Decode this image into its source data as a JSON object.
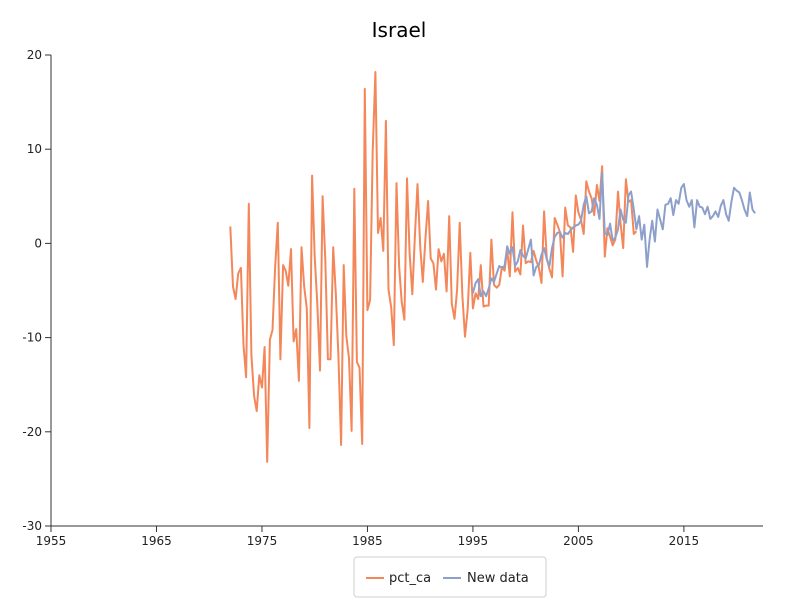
{
  "chart_data": {
    "type": "line",
    "title": "Israel",
    "xlabel": "",
    "ylabel": "",
    "xlim": [
      1955,
      2022.5
    ],
    "ylim": [
      -30,
      20
    ],
    "x_ticks": [
      1955,
      1965,
      1975,
      1985,
      1995,
      2005,
      2015
    ],
    "y_ticks": [
      -30,
      -20,
      -10,
      0,
      10,
      20
    ],
    "grid": false,
    "legend": "bottom-center",
    "series": [
      {
        "name": "pct_ca",
        "color": "#f4875a",
        "points": [
          [
            1972.0,
            1.8
          ],
          [
            1972.25,
            -4.6
          ],
          [
            1972.5,
            -5.9
          ],
          [
            1972.75,
            -3.2
          ],
          [
            1973.0,
            -2.6
          ],
          [
            1973.25,
            -10.8
          ],
          [
            1973.5,
            -14.2
          ],
          [
            1973.75,
            4.2
          ],
          [
            1974.0,
            -11.9
          ],
          [
            1974.25,
            -16.2
          ],
          [
            1974.5,
            -17.8
          ],
          [
            1974.75,
            -14.0
          ],
          [
            1975.0,
            -15.3
          ],
          [
            1975.25,
            -11.0
          ],
          [
            1975.5,
            -23.2
          ],
          [
            1975.75,
            -10.2
          ],
          [
            1976.0,
            -9.2
          ],
          [
            1976.25,
            -2.6
          ],
          [
            1976.5,
            2.2
          ],
          [
            1976.75,
            -12.3
          ],
          [
            1977.0,
            -2.3
          ],
          [
            1977.25,
            -2.9
          ],
          [
            1977.5,
            -4.5
          ],
          [
            1977.75,
            -0.6
          ],
          [
            1978.0,
            -10.4
          ],
          [
            1978.25,
            -9.1
          ],
          [
            1978.5,
            -14.6
          ],
          [
            1978.75,
            -0.4
          ],
          [
            1979.0,
            -4.6
          ],
          [
            1979.25,
            -6.9
          ],
          [
            1979.5,
            -19.6
          ],
          [
            1979.75,
            7.2
          ],
          [
            1980.0,
            -1.4
          ],
          [
            1980.25,
            -6.4
          ],
          [
            1980.5,
            -13.5
          ],
          [
            1980.75,
            5.0
          ],
          [
            1981.0,
            -1.7
          ],
          [
            1981.25,
            -12.3
          ],
          [
            1981.5,
            -12.3
          ],
          [
            1981.75,
            -0.4
          ],
          [
            1982.0,
            -5.3
          ],
          [
            1982.25,
            -11.9
          ],
          [
            1982.5,
            -21.4
          ],
          [
            1982.75,
            -2.3
          ],
          [
            1983.0,
            -9.8
          ],
          [
            1983.25,
            -12.2
          ],
          [
            1983.5,
            -19.9
          ],
          [
            1983.75,
            5.8
          ],
          [
            1984.0,
            -12.6
          ],
          [
            1984.25,
            -13.2
          ],
          [
            1984.5,
            -21.3
          ],
          [
            1984.75,
            16.4
          ],
          [
            1985.0,
            -7.1
          ],
          [
            1985.25,
            -6.0
          ],
          [
            1985.5,
            9.8
          ],
          [
            1985.75,
            18.2
          ],
          [
            1986.0,
            1.1
          ],
          [
            1986.25,
            2.7
          ],
          [
            1986.5,
            -0.8
          ],
          [
            1986.75,
            13.0
          ],
          [
            1987.0,
            -4.9
          ],
          [
            1987.25,
            -6.8
          ],
          [
            1987.5,
            -10.8
          ],
          [
            1987.75,
            6.4
          ],
          [
            1988.0,
            -2.4
          ],
          [
            1988.25,
            -6.2
          ],
          [
            1988.5,
            -8.1
          ],
          [
            1988.75,
            6.9
          ],
          [
            1989.0,
            -1.0
          ],
          [
            1989.25,
            -5.4
          ],
          [
            1989.5,
            0.8
          ],
          [
            1989.75,
            6.3
          ],
          [
            1990.0,
            -0.3
          ],
          [
            1990.25,
            -4.1
          ],
          [
            1990.5,
            0.6
          ],
          [
            1990.75,
            4.5
          ],
          [
            1991.0,
            -1.6
          ],
          [
            1991.25,
            -2.1
          ],
          [
            1991.5,
            -4.9
          ],
          [
            1991.75,
            -0.6
          ],
          [
            1992.0,
            -1.9
          ],
          [
            1992.25,
            -1.1
          ],
          [
            1992.5,
            -5.1
          ],
          [
            1992.75,
            2.9
          ],
          [
            1993.0,
            -6.4
          ],
          [
            1993.25,
            -8.0
          ],
          [
            1993.5,
            -4.9
          ],
          [
            1993.75,
            2.2
          ],
          [
            1994.0,
            -5.6
          ],
          [
            1994.25,
            -9.9
          ],
          [
            1994.5,
            -7.0
          ],
          [
            1994.75,
            -1.0
          ],
          [
            1995.0,
            -6.9
          ],
          [
            1995.25,
            -5.3
          ],
          [
            1995.5,
            -5.9
          ],
          [
            1995.75,
            -2.3
          ],
          [
            1996.0,
            -6.7
          ],
          [
            1996.25,
            -6.6
          ],
          [
            1996.5,
            -6.6
          ],
          [
            1996.75,
            0.4
          ],
          [
            1997.0,
            -4.4
          ],
          [
            1997.25,
            -4.7
          ],
          [
            1997.5,
            -4.4
          ],
          [
            1997.75,
            -2.5
          ],
          [
            1998.0,
            -2.9
          ],
          [
            1998.25,
            -0.6
          ],
          [
            1998.5,
            -3.5
          ],
          [
            1998.75,
            3.3
          ],
          [
            1999.0,
            -3.0
          ],
          [
            1999.25,
            -2.6
          ],
          [
            1999.5,
            -3.3
          ],
          [
            1999.75,
            1.9
          ],
          [
            2000.0,
            -2.1
          ],
          [
            2000.25,
            -1.9
          ],
          [
            2000.5,
            -2.0
          ],
          [
            2000.75,
            -0.8
          ],
          [
            2001.0,
            -1.8
          ],
          [
            2001.25,
            -2.6
          ],
          [
            2001.5,
            -4.2
          ],
          [
            2001.75,
            3.4
          ],
          [
            2002.0,
            -1.6
          ],
          [
            2002.25,
            -2.7
          ],
          [
            2002.5,
            -3.6
          ],
          [
            2002.75,
            2.7
          ],
          [
            2003.0,
            2.0
          ],
          [
            2003.25,
            1.2
          ],
          [
            2003.5,
            -3.5
          ],
          [
            2003.75,
            3.8
          ],
          [
            2004.0,
            1.9
          ],
          [
            2004.25,
            1.7
          ],
          [
            2004.5,
            -0.9
          ],
          [
            2004.75,
            5.1
          ],
          [
            2005.0,
            3.3
          ],
          [
            2005.25,
            2.5
          ],
          [
            2005.5,
            1.0
          ],
          [
            2005.75,
            6.6
          ],
          [
            2006.0,
            5.5
          ],
          [
            2006.25,
            4.8
          ],
          [
            2006.5,
            3.0
          ],
          [
            2006.75,
            6.2
          ],
          [
            2007.0,
            4.5
          ],
          [
            2007.25,
            8.2
          ],
          [
            2007.5,
            -1.4
          ],
          [
            2007.75,
            1.6
          ],
          [
            2008.0,
            0.7
          ],
          [
            2008.25,
            -0.2
          ],
          [
            2008.5,
            0.4
          ],
          [
            2008.75,
            5.5
          ],
          [
            2009.0,
            2.1
          ],
          [
            2009.25,
            -0.5
          ],
          [
            2009.5,
            6.8
          ],
          [
            2009.75,
            4.4
          ],
          [
            2010.0,
            4.6
          ],
          [
            2010.25,
            1.0
          ],
          [
            2010.5,
            1.3
          ]
        ]
      },
      {
        "name": "New data",
        "color": "#8da0cb",
        "points": [
          [
            1995.0,
            -5.3
          ],
          [
            1995.25,
            -4.2
          ],
          [
            1995.5,
            -3.8
          ],
          [
            1995.75,
            -5.6
          ],
          [
            1996.0,
            -5.1
          ],
          [
            1996.25,
            -5.6
          ],
          [
            1996.5,
            -4.8
          ],
          [
            1996.75,
            -3.7
          ],
          [
            1997.0,
            -4.1
          ],
          [
            1997.25,
            -3.2
          ],
          [
            1997.5,
            -2.4
          ],
          [
            1997.75,
            -2.6
          ],
          [
            1998.0,
            -2.4
          ],
          [
            1998.25,
            -0.3
          ],
          [
            1998.5,
            -1.1
          ],
          [
            1998.75,
            -0.4
          ],
          [
            1999.0,
            -2.4
          ],
          [
            1999.25,
            -1.9
          ],
          [
            1999.5,
            -0.7
          ],
          [
            1999.75,
            -1.3
          ],
          [
            2000.0,
            -1.6
          ],
          [
            2000.25,
            -0.6
          ],
          [
            2000.5,
            0.4
          ],
          [
            2000.75,
            -3.4
          ],
          [
            2001.0,
            -2.5
          ],
          [
            2001.25,
            -2.3
          ],
          [
            2001.5,
            -1.2
          ],
          [
            2001.75,
            -0.5
          ],
          [
            2002.0,
            -1.7
          ],
          [
            2002.25,
            -2.4
          ],
          [
            2002.5,
            -0.5
          ],
          [
            2002.75,
            0.7
          ],
          [
            2003.0,
            1.1
          ],
          [
            2003.25,
            1.2
          ],
          [
            2003.5,
            0.6
          ],
          [
            2003.75,
            1.1
          ],
          [
            2004.0,
            1.0
          ],
          [
            2004.25,
            1.4
          ],
          [
            2004.5,
            1.7
          ],
          [
            2004.75,
            1.9
          ],
          [
            2005.0,
            2.0
          ],
          [
            2005.25,
            2.4
          ],
          [
            2005.5,
            4.1
          ],
          [
            2005.75,
            5.0
          ],
          [
            2006.0,
            3.2
          ],
          [
            2006.25,
            3.4
          ],
          [
            2006.5,
            4.8
          ],
          [
            2006.75,
            4.1
          ],
          [
            2007.0,
            2.6
          ],
          [
            2007.25,
            7.5
          ],
          [
            2007.5,
            1.1
          ],
          [
            2007.75,
            0.9
          ],
          [
            2008.0,
            2.1
          ],
          [
            2008.25,
            0.3
          ],
          [
            2008.5,
            0.6
          ],
          [
            2008.75,
            1.5
          ],
          [
            2009.0,
            3.6
          ],
          [
            2009.25,
            2.5
          ],
          [
            2009.5,
            2.2
          ],
          [
            2009.75,
            5.1
          ],
          [
            2010.0,
            5.5
          ],
          [
            2010.25,
            3.6
          ],
          [
            2010.5,
            1.5
          ],
          [
            2010.75,
            2.9
          ],
          [
            2011.0,
            0.4
          ],
          [
            2011.25,
            2.0
          ],
          [
            2011.5,
            -2.5
          ],
          [
            2011.75,
            0.4
          ],
          [
            2012.0,
            2.4
          ],
          [
            2012.25,
            0.2
          ],
          [
            2012.5,
            3.6
          ],
          [
            2012.75,
            2.5
          ],
          [
            2013.0,
            1.5
          ],
          [
            2013.25,
            4.1
          ],
          [
            2013.5,
            4.2
          ],
          [
            2013.75,
            4.8
          ],
          [
            2014.0,
            3.0
          ],
          [
            2014.25,
            4.6
          ],
          [
            2014.5,
            4.2
          ],
          [
            2014.75,
            5.9
          ],
          [
            2015.0,
            6.3
          ],
          [
            2015.25,
            4.6
          ],
          [
            2015.5,
            3.9
          ],
          [
            2015.75,
            4.6
          ],
          [
            2016.0,
            1.7
          ],
          [
            2016.25,
            4.6
          ],
          [
            2016.5,
            3.9
          ],
          [
            2016.75,
            3.8
          ],
          [
            2017.0,
            3.1
          ],
          [
            2017.25,
            3.9
          ],
          [
            2017.5,
            2.6
          ],
          [
            2017.75,
            2.9
          ],
          [
            2018.0,
            3.4
          ],
          [
            2018.25,
            2.8
          ],
          [
            2018.5,
            4.0
          ],
          [
            2018.75,
            4.6
          ],
          [
            2019.0,
            3.1
          ],
          [
            2019.25,
            2.4
          ],
          [
            2019.5,
            4.4
          ],
          [
            2019.75,
            5.9
          ],
          [
            2020.0,
            5.6
          ],
          [
            2020.25,
            5.4
          ],
          [
            2020.5,
            4.6
          ],
          [
            2020.75,
            3.6
          ],
          [
            2021.0,
            2.9
          ],
          [
            2021.25,
            5.4
          ],
          [
            2021.5,
            3.6
          ],
          [
            2021.75,
            3.2
          ]
        ]
      }
    ]
  }
}
